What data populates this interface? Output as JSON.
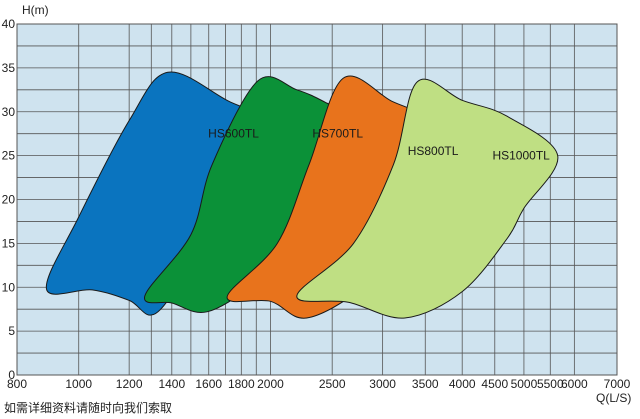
{
  "chart_data": {
    "type": "area",
    "ylabel": "H(m)",
    "xlabel": "Q(L/S)",
    "x_scale": "log",
    "xlim": [
      800,
      7000
    ],
    "ylim": [
      0,
      40
    ],
    "x_ticks": [
      800,
      1000,
      1200,
      1400,
      1600,
      1800,
      2000,
      2500,
      3000,
      3500,
      4000,
      4500,
      5000,
      5500,
      6000,
      7000
    ],
    "x_minor_ticks": [
      1300,
      1500,
      1700,
      1900
    ],
    "y_ticks": [
      0,
      5,
      10,
      15,
      20,
      25,
      30,
      35,
      40
    ],
    "grid": true,
    "background": "#cfe3ef",
    "series": [
      {
        "name": "HS600TL",
        "color": "#0a74bf",
        "outline": [
          [
            890,
            9.8
          ],
          [
            1050,
            9.7
          ],
          [
            1200,
            8.5
          ],
          [
            1320,
            7.0
          ],
          [
            1520,
            13
          ],
          [
            1800,
            20
          ],
          [
            2130,
            27.5
          ],
          [
            1720,
            31.2
          ],
          [
            1380,
            34.5
          ],
          [
            1200,
            29
          ],
          [
            1000,
            18
          ]
        ],
        "label_at": [
          1750,
          27.5
        ]
      },
      {
        "name": "HS700TL",
        "color": "#0b9138",
        "outline": [
          [
            1270,
            9.0
          ],
          [
            1400,
            8.2
          ],
          [
            1590,
            7.2
          ],
          [
            1900,
            10.5
          ],
          [
            2400,
            16.5
          ],
          [
            2600,
            20
          ],
          [
            2950,
            27.7
          ],
          [
            2450,
            31.0
          ],
          [
            2200,
            32.5
          ],
          [
            1910,
            33.5
          ],
          [
            1620,
            24
          ],
          [
            1500,
            16
          ]
        ],
        "label_at": [
          2550,
          27.5
        ]
      },
      {
        "name": "HS800TL",
        "color": "#e8731c",
        "outline": [
          [
            1710,
            8.9
          ],
          [
            2000,
            8.4
          ],
          [
            2280,
            6.5
          ],
          [
            2800,
            10
          ],
          [
            3400,
            16
          ],
          [
            3700,
            19.5
          ],
          [
            4100,
            25.8
          ],
          [
            3500,
            29.5
          ],
          [
            3100,
            31.2
          ],
          [
            2600,
            33.8
          ],
          [
            2300,
            24
          ],
          [
            2050,
            15
          ]
        ],
        "label_at": [
          3600,
          25.5
        ]
      },
      {
        "name": "HS1000TL",
        "color": "#bfdf83",
        "outline": [
          [
            2200,
            9.0
          ],
          [
            2650,
            8.3
          ],
          [
            3250,
            6.5
          ],
          [
            4000,
            9.5
          ],
          [
            4700,
            15.5
          ],
          [
            5000,
            19
          ],
          [
            5650,
            25
          ],
          [
            4700,
            29.5
          ],
          [
            4000,
            31.3
          ],
          [
            3400,
            33.4
          ],
          [
            3120,
            24
          ],
          [
            2700,
            15
          ]
        ],
        "label_at": [
          4950,
          25
        ]
      }
    ]
  },
  "note": "如需详细资料请随时向我们索取"
}
